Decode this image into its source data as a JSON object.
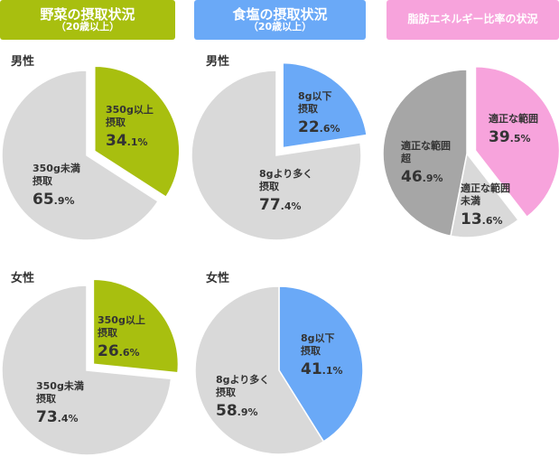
{
  "headers": {
    "vegetable": {
      "title": "野菜の摂取状況",
      "subtitle": "（20歳以上）",
      "color": "#a8bf0f"
    },
    "salt": {
      "title": "食塩の摂取状況",
      "subtitle": "（20歳以上）",
      "color": "#6aa9f7"
    },
    "fat": {
      "title": "脂肪エネルギー比率の状況",
      "color": "#f7a3dc"
    }
  },
  "colors": {
    "gray": "#d9d9d9",
    "dark_gray": "#a6a6a6",
    "label": "#333333"
  },
  "chart_data": [
    {
      "type": "pie",
      "group": "vegetable",
      "title": "男性",
      "slices": [
        {
          "label": [
            "350g以上",
            "摂取"
          ],
          "value": 34.1,
          "color": "#a8bf0f",
          "exploded": true
        },
        {
          "label": [
            "350g未満",
            "摂取"
          ],
          "value": 65.9,
          "color": "#d9d9d9"
        }
      ]
    },
    {
      "type": "pie",
      "group": "salt",
      "title": "男性",
      "slices": [
        {
          "label": [
            "8g以下",
            "摂取"
          ],
          "value": 22.6,
          "color": "#6aa9f7",
          "exploded": true
        },
        {
          "label": [
            "8gより多く",
            "摂取"
          ],
          "value": 77.4,
          "color": "#d9d9d9"
        }
      ]
    },
    {
      "type": "pie",
      "group": "fat",
      "title": "",
      "slices": [
        {
          "label": [
            "適正な範囲"
          ],
          "value": 39.5,
          "color": "#f7a3dc",
          "exploded": true
        },
        {
          "label": [
            "適正な範囲",
            "未満"
          ],
          "value": 13.6,
          "color": "#d9d9d9"
        },
        {
          "label": [
            "適正な範囲",
            "超"
          ],
          "value": 46.9,
          "color": "#a6a6a6"
        }
      ]
    },
    {
      "type": "pie",
      "group": "vegetable",
      "title": "女性",
      "slices": [
        {
          "label": [
            "350g以上",
            "摂取"
          ],
          "value": 26.6,
          "color": "#a8bf0f",
          "exploded": true
        },
        {
          "label": [
            "350g未満",
            "摂取"
          ],
          "value": 73.4,
          "color": "#d9d9d9"
        }
      ]
    },
    {
      "type": "pie",
      "group": "salt",
      "title": "女性",
      "slices": [
        {
          "label": [
            "8g以下",
            "摂取"
          ],
          "value": 41.1,
          "color": "#6aa9f7"
        },
        {
          "label": [
            "8gより多く",
            "摂取"
          ],
          "value": 58.9,
          "color": "#d9d9d9"
        }
      ]
    }
  ]
}
